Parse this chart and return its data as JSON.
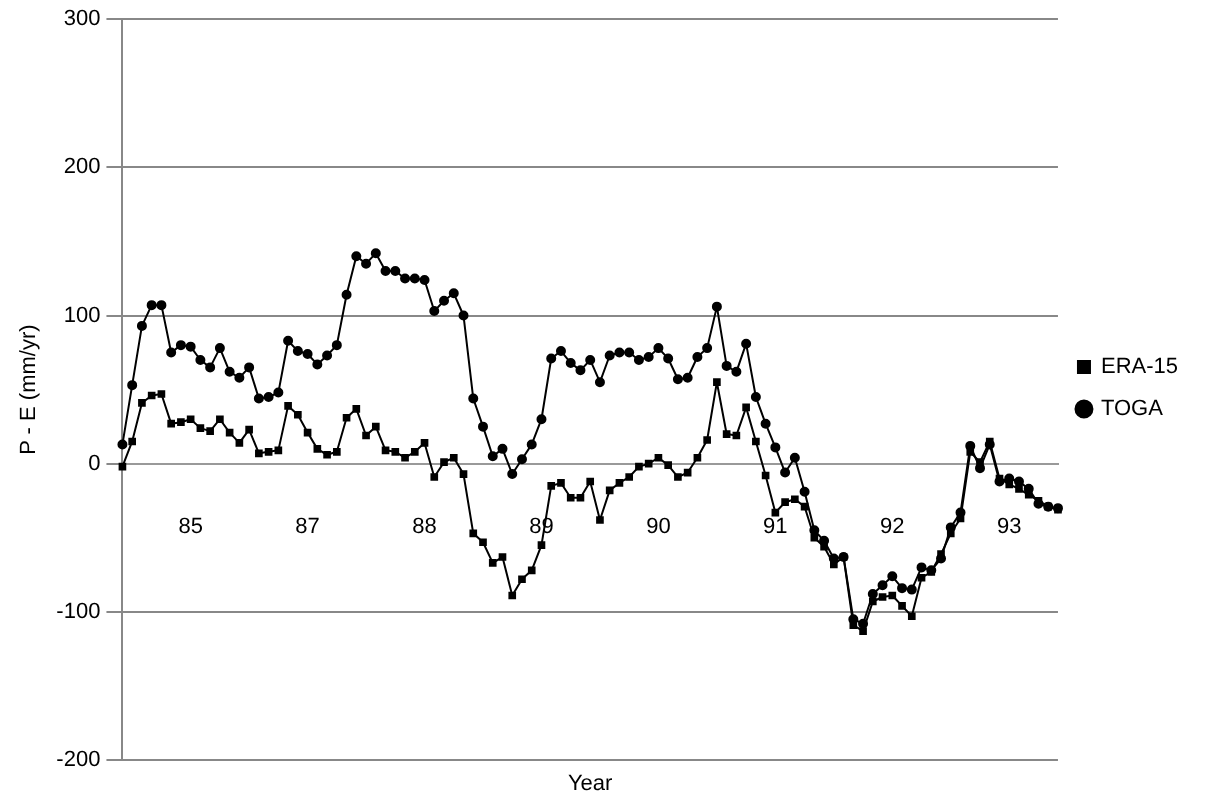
{
  "chart_data": {
    "type": "line",
    "xlabel": "Year",
    "ylabel": "P - E (mm/yr)",
    "categories": [
      null,
      null,
      null,
      null,
      null,
      null,
      null,
      "85",
      null,
      null,
      null,
      null,
      null,
      null,
      null,
      null,
      null,
      null,
      null,
      "87",
      null,
      null,
      null,
      null,
      null,
      null,
      null,
      null,
      null,
      null,
      null,
      "88",
      null,
      null,
      null,
      null,
      null,
      null,
      null,
      null,
      null,
      null,
      null,
      "89",
      null,
      null,
      null,
      null,
      null,
      null,
      null,
      null,
      null,
      null,
      null,
      "90",
      null,
      null,
      null,
      null,
      null,
      null,
      null,
      null,
      null,
      null,
      null,
      "91",
      null,
      null,
      null,
      null,
      null,
      null,
      null,
      null,
      null,
      null,
      null,
      "92",
      null,
      null,
      null,
      null,
      null,
      null,
      null,
      null,
      null,
      null,
      null,
      "93",
      null,
      null,
      null,
      null,
      null
    ],
    "series": [
      {
        "name": "ERA-15",
        "color": "#000000",
        "marker": "square",
        "values": [
          -2,
          15,
          41,
          46,
          47,
          27,
          28,
          30,
          24,
          22,
          30,
          21,
          14,
          23,
          7,
          8,
          9,
          39,
          33,
          21,
          10,
          6,
          8,
          31,
          37,
          19,
          25,
          9,
          8,
          4,
          8,
          14,
          -9,
          1,
          4,
          -7,
          -47,
          -53,
          -67,
          -63,
          -89,
          -78,
          -72,
          -55,
          -15,
          -13,
          -23,
          -23,
          -12,
          -38,
          -18,
          -13,
          -9,
          -2,
          0,
          4,
          -1,
          -9,
          -6,
          4,
          16,
          55,
          20,
          19,
          38,
          15,
          -8,
          -33,
          -26,
          -24,
          -29,
          -50,
          -56,
          -68,
          -63,
          -109,
          -113,
          -93,
          -90,
          -89,
          -96,
          -103,
          -77,
          -73,
          -61,
          -47,
          -37,
          8,
          1,
          15,
          -10,
          -14,
          -17,
          -21,
          -25,
          -29,
          -31
        ]
      },
      {
        "name": "TOGA",
        "color": "#000000",
        "marker": "circle",
        "values": [
          13,
          53,
          93,
          107,
          107,
          75,
          80,
          79,
          70,
          65,
          78,
          62,
          58,
          65,
          44,
          45,
          48,
          83,
          76,
          74,
          67,
          73,
          80,
          114,
          140,
          135,
          142,
          130,
          130,
          125,
          125,
          124,
          103,
          110,
          115,
          100,
          44,
          25,
          5,
          10,
          -7,
          3,
          13,
          30,
          71,
          76,
          68,
          63,
          70,
          55,
          73,
          75,
          75,
          70,
          72,
          78,
          71,
          57,
          58,
          72,
          78,
          106,
          66,
          62,
          81,
          45,
          27,
          11,
          -6,
          4,
          -19,
          -45,
          -52,
          -64,
          -63,
          -105,
          -108,
          -88,
          -82,
          -76,
          -84,
          -85,
          -70,
          -72,
          -64,
          -43,
          -33,
          12,
          -3,
          13,
          -12,
          -10,
          -12,
          -17,
          -27,
          -29,
          -30
        ]
      }
    ],
    "ylim": [
      -200,
      300
    ],
    "yticks": [
      -200,
      -100,
      0,
      100,
      200,
      300
    ],
    "grid": "y",
    "legend": "right"
  }
}
